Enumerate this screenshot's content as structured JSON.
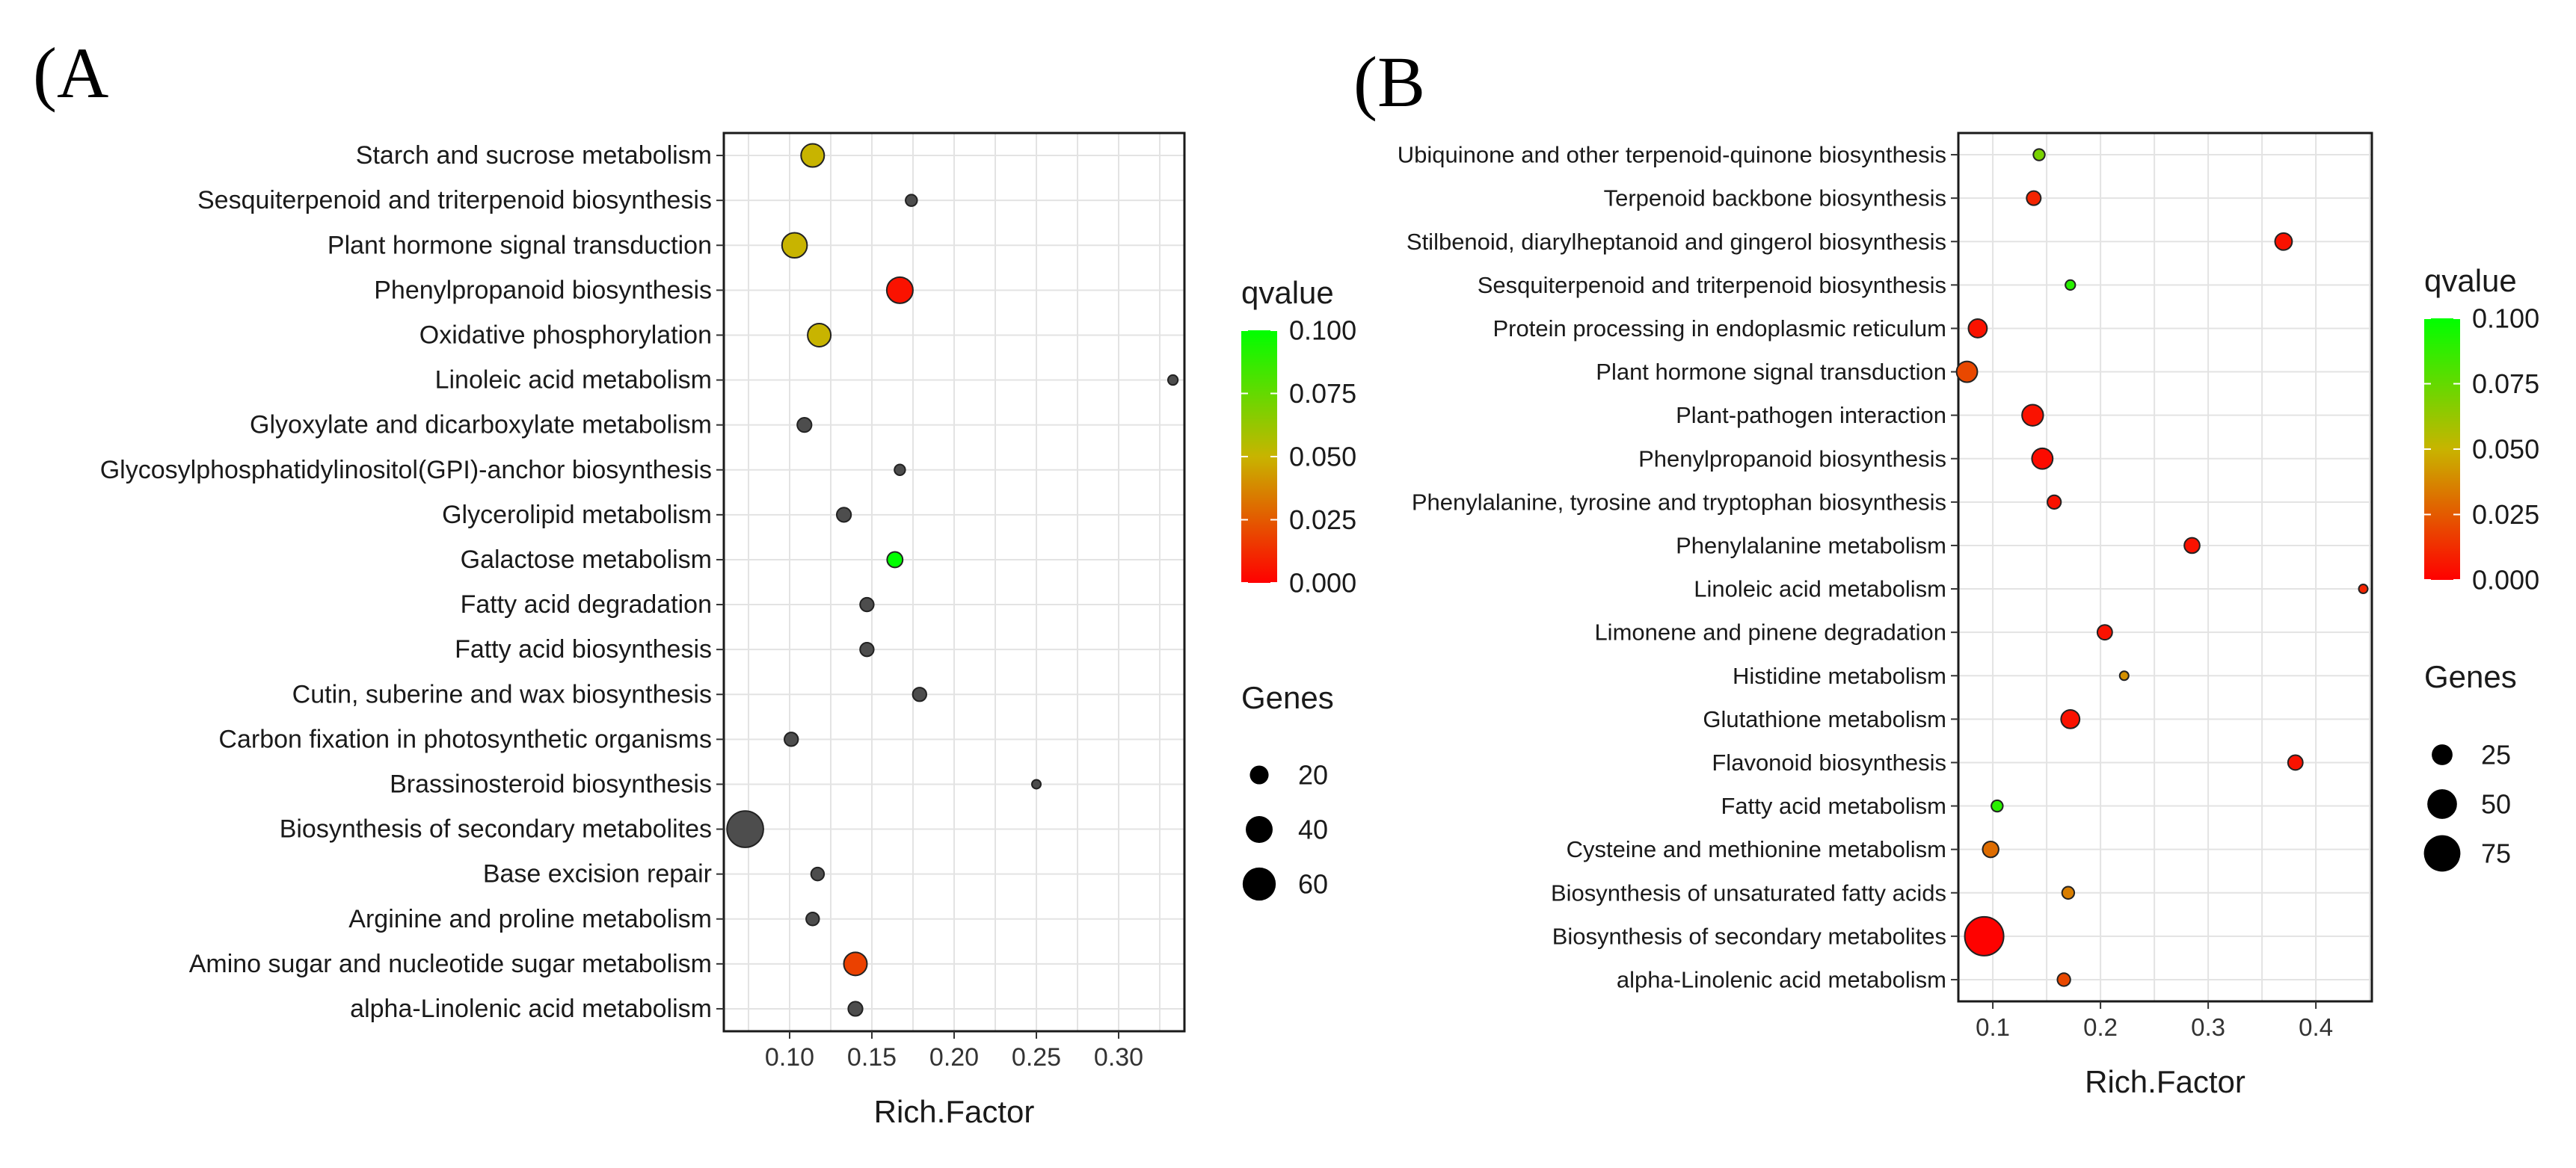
{
  "panels": {
    "a": {
      "label": "(A"
    },
    "b": {
      "label": "(B"
    }
  },
  "colors": {
    "q_low": "#ff0000",
    "q_mid": "#c8b400",
    "q_high": "#00ff00",
    "na_point": "#4d4d4d",
    "grid": "#e3e3e3",
    "panel_border": "#1a1a1a"
  },
  "chart_data": [
    {
      "type": "scatter",
      "panel": "A",
      "xlabel": "Rich.Factor",
      "ylabel": "",
      "xlim": [
        0.06,
        0.34
      ],
      "xticks": [
        0.1,
        0.15,
        0.2,
        0.25,
        0.3
      ],
      "xtick_labels": [
        "0.10",
        "0.15",
        "0.20",
        "0.25",
        "0.30"
      ],
      "grid": true,
      "color_legend": {
        "title": "qvalue",
        "range": [
          0,
          0.1
        ],
        "ticks": [
          "0.100",
          "0.075",
          "0.050",
          "0.025",
          "0.000"
        ]
      },
      "size_legend": {
        "title": "Genes",
        "values": [
          20,
          40,
          60
        ],
        "labels": [
          "20",
          "40",
          "60"
        ]
      },
      "size_range": [
        5,
        76
      ],
      "points": [
        {
          "pathway": "Starch and sucrose metabolism",
          "rich_factor": 0.114,
          "genes": 30,
          "qvalue": 0.05
        },
        {
          "pathway": "Sesquiterpenoid and triterpenoid biosynthesis",
          "rich_factor": 0.174,
          "genes": 8,
          "qvalue": null
        },
        {
          "pathway": "Plant hormone signal transduction",
          "rich_factor": 0.103,
          "genes": 35,
          "qvalue": 0.05
        },
        {
          "pathway": "Phenylpropanoid biosynthesis",
          "rich_factor": 0.167,
          "genes": 38,
          "qvalue": 0.005
        },
        {
          "pathway": "Oxidative phosphorylation",
          "rich_factor": 0.118,
          "genes": 30,
          "qvalue": 0.05
        },
        {
          "pathway": "Linoleic acid metabolism",
          "rich_factor": 0.333,
          "genes": 6,
          "qvalue": null
        },
        {
          "pathway": "Glyoxylate and dicarboxylate metabolism",
          "rich_factor": 0.109,
          "genes": 12,
          "qvalue": null
        },
        {
          "pathway": "Glycosylphosphatidylinositol(GPI)-anchor biosynthesis",
          "rich_factor": 0.167,
          "genes": 7,
          "qvalue": null
        },
        {
          "pathway": "Glycerolipid metabolism",
          "rich_factor": 0.133,
          "genes": 12,
          "qvalue": null
        },
        {
          "pathway": "Galactose metabolism",
          "rich_factor": 0.164,
          "genes": 14,
          "qvalue": 0.1
        },
        {
          "pathway": "Fatty acid degradation",
          "rich_factor": 0.147,
          "genes": 11,
          "qvalue": null
        },
        {
          "pathway": "Fatty acid biosynthesis",
          "rich_factor": 0.147,
          "genes": 11,
          "qvalue": null
        },
        {
          "pathway": "Cutin, suberine and wax biosynthesis",
          "rich_factor": 0.179,
          "genes": 11,
          "qvalue": null
        },
        {
          "pathway": "Carbon fixation in photosynthetic organisms",
          "rich_factor": 0.101,
          "genes": 11,
          "qvalue": null
        },
        {
          "pathway": "Brassinosteroid biosynthesis",
          "rich_factor": 0.25,
          "genes": 4,
          "qvalue": null
        },
        {
          "pathway": "Biosynthesis of secondary metabolites",
          "rich_factor": 0.073,
          "genes": 72,
          "qvalue": null
        },
        {
          "pathway": "Base excision repair",
          "rich_factor": 0.117,
          "genes": 10,
          "qvalue": null
        },
        {
          "pathway": "Arginine and proline metabolism",
          "rich_factor": 0.114,
          "genes": 10,
          "qvalue": null
        },
        {
          "pathway": "Amino sugar and nucleotide sugar metabolism",
          "rich_factor": 0.14,
          "genes": 30,
          "qvalue": 0.018
        },
        {
          "pathway": "alpha-Linolenic acid metabolism",
          "rich_factor": 0.14,
          "genes": 12,
          "qvalue": null
        }
      ]
    },
    {
      "type": "scatter",
      "panel": "B",
      "xlabel": "Rich.Factor",
      "ylabel": "",
      "xlim": [
        0.068,
        0.452
      ],
      "xticks": [
        0.1,
        0.2,
        0.3,
        0.4
      ],
      "xtick_labels": [
        "0.1",
        "0.2",
        "0.3",
        "0.4"
      ],
      "grid": true,
      "color_legend": {
        "title": "qvalue",
        "range": [
          0,
          0.1
        ],
        "ticks": [
          "0.100",
          "0.075",
          "0.050",
          "0.025",
          "0.000"
        ]
      },
      "size_legend": {
        "title": "Genes",
        "values": [
          25,
          50,
          75
        ],
        "labels": [
          "25",
          "50",
          "75"
        ]
      },
      "size_range": [
        5,
        85
      ],
      "points": [
        {
          "pathway": "Ubiquinone and other terpenoid-quinone biosynthesis",
          "rich_factor": 0.143,
          "genes": 8,
          "qvalue": 0.07
        },
        {
          "pathway": "Terpenoid backbone biosynthesis",
          "rich_factor": 0.138,
          "genes": 12,
          "qvalue": 0.01
        },
        {
          "pathway": "Stilbenoid, diarylheptanoid and gingerol biosynthesis",
          "rich_factor": 0.37,
          "genes": 17,
          "qvalue": 0.005
        },
        {
          "pathway": "Sesquiterpenoid and triterpenoid biosynthesis",
          "rich_factor": 0.172,
          "genes": 6,
          "qvalue": 0.09
        },
        {
          "pathway": "Protein processing in endoplasmic reticulum",
          "rich_factor": 0.086,
          "genes": 20,
          "qvalue": 0.005
        },
        {
          "pathway": "Plant hormone signal transduction",
          "rich_factor": 0.076,
          "genes": 25,
          "qvalue": 0.02
        },
        {
          "pathway": "Plant-pathogen interaction",
          "rich_factor": 0.137,
          "genes": 26,
          "qvalue": 0.005
        },
        {
          "pathway": "Phenylpropanoid biosynthesis",
          "rich_factor": 0.146,
          "genes": 25,
          "qvalue": 0.003
        },
        {
          "pathway": "Phenylalanine, tyrosine and tryptophan biosynthesis",
          "rich_factor": 0.157,
          "genes": 11,
          "qvalue": 0.005
        },
        {
          "pathway": "Phenylalanine metabolism",
          "rich_factor": 0.285,
          "genes": 14,
          "qvalue": 0.005
        },
        {
          "pathway": "Linoleic acid metabolism",
          "rich_factor": 0.444,
          "genes": 4,
          "qvalue": 0.01
        },
        {
          "pathway": "Limonene and pinene degradation",
          "rich_factor": 0.204,
          "genes": 13,
          "qvalue": 0.005
        },
        {
          "pathway": "Histidine metabolism",
          "rich_factor": 0.222,
          "genes": 5,
          "qvalue": 0.04
        },
        {
          "pathway": "Glutathione metabolism",
          "rich_factor": 0.172,
          "genes": 20,
          "qvalue": 0.005
        },
        {
          "pathway": "Flavonoid biosynthesis",
          "rich_factor": 0.381,
          "genes": 13,
          "qvalue": 0.005
        },
        {
          "pathway": "Fatty acid metabolism",
          "rich_factor": 0.104,
          "genes": 8,
          "qvalue": 0.09
        },
        {
          "pathway": "Cysteine and methionine metabolism",
          "rich_factor": 0.098,
          "genes": 15,
          "qvalue": 0.03
        },
        {
          "pathway": "Biosynthesis of unsaturated fatty acids",
          "rich_factor": 0.17,
          "genes": 9,
          "qvalue": 0.035
        },
        {
          "pathway": "Biosynthesis of secondary metabolites",
          "rich_factor": 0.092,
          "genes": 85,
          "qvalue": 0.0005
        },
        {
          "pathway": "alpha-Linolenic acid metabolism",
          "rich_factor": 0.166,
          "genes": 10,
          "qvalue": 0.02
        }
      ]
    }
  ]
}
